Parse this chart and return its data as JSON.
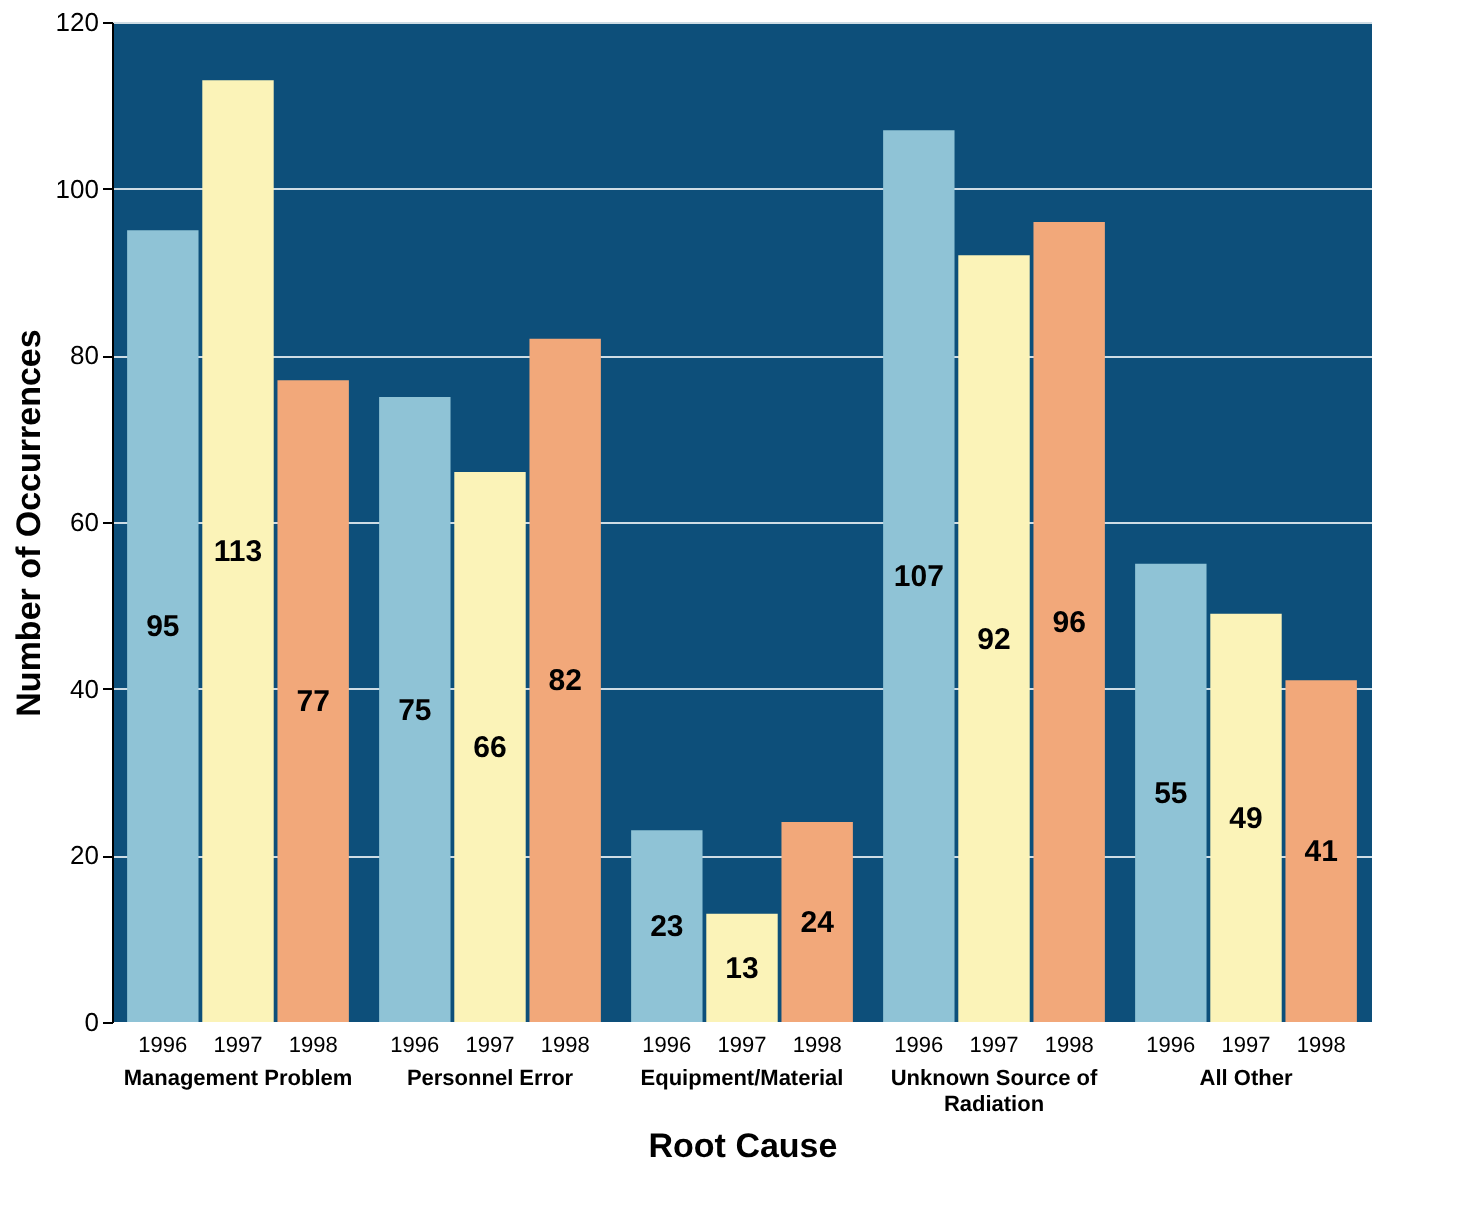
{
  "chart_data": {
    "type": "bar",
    "xlabel": "Root Cause",
    "ylabel": "Number of Occurrences",
    "categories": [
      "Management Problem",
      "Personnel Error",
      "Equipment/Material",
      "Unknown Source of Radiation",
      "All Other"
    ],
    "series": [
      {
        "name": "1996",
        "color": "#8fc3d6",
        "values": [
          95,
          75,
          23,
          107,
          55
        ]
      },
      {
        "name": "1997",
        "color": "#fbf3b8",
        "values": [
          113,
          66,
          13,
          92,
          49
        ]
      },
      {
        "name": "1998",
        "color": "#f2a87a",
        "values": [
          77,
          82,
          24,
          96,
          41
        ]
      }
    ],
    "ylim": [
      0,
      120
    ],
    "yticks": [
      0,
      20,
      40,
      60,
      80,
      100,
      120
    ],
    "grid": "y",
    "data_labels": true,
    "legend": false
  }
}
